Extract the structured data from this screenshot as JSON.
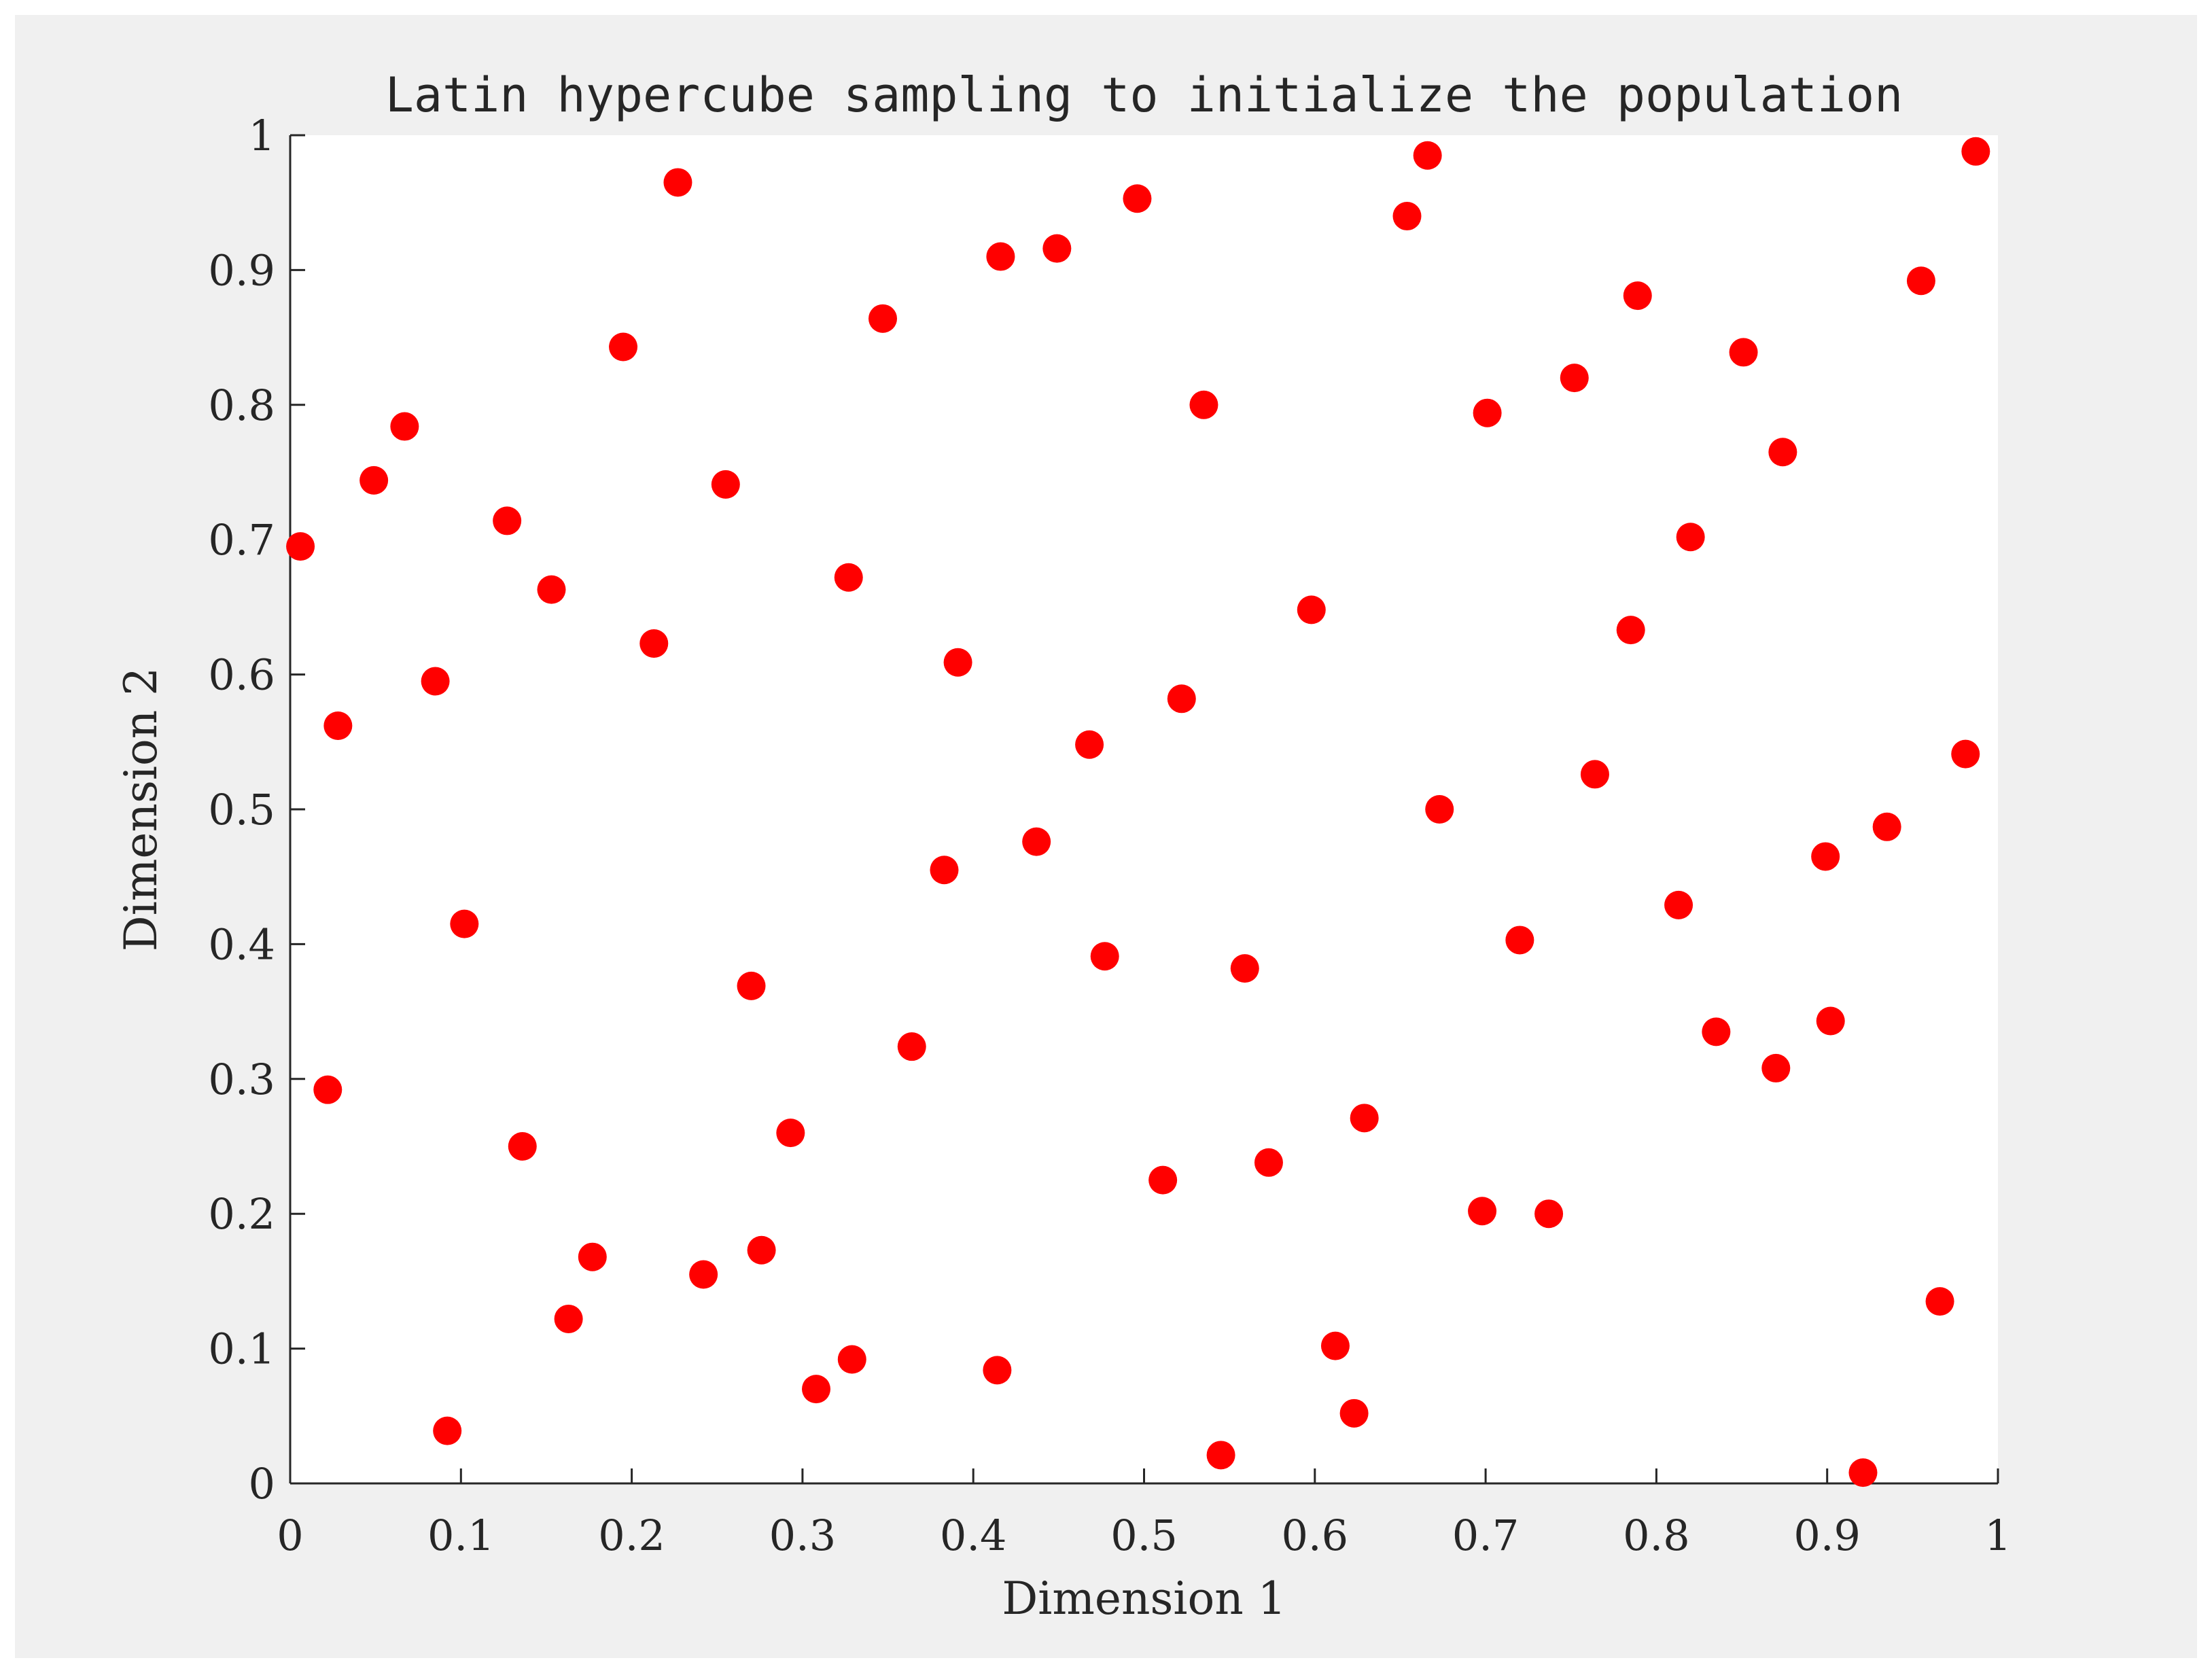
{
  "chart_data": {
    "type": "scatter",
    "title": "Latin hypercube sampling to initialize the population",
    "xlabel": "Dimension 1",
    "ylabel": "Dimension 2",
    "xlim": [
      0,
      1
    ],
    "ylim": [
      0,
      1
    ],
    "xticks": [
      "0",
      "0.1",
      "0.2",
      "0.3",
      "0.4",
      "0.5",
      "0.6",
      "0.7",
      "0.8",
      "0.9",
      "1"
    ],
    "yticks": [
      "0",
      "0.1",
      "0.2",
      "0.3",
      "0.4",
      "0.5",
      "0.6",
      "0.7",
      "0.8",
      "0.9",
      "1"
    ],
    "grid": false,
    "marker_color": "#ff0000",
    "points": [
      [
        0.006,
        0.695
      ],
      [
        0.022,
        0.292
      ],
      [
        0.028,
        0.562
      ],
      [
        0.049,
        0.744
      ],
      [
        0.067,
        0.784
      ],
      [
        0.085,
        0.595
      ],
      [
        0.092,
        0.039
      ],
      [
        0.102,
        0.415
      ],
      [
        0.127,
        0.714
      ],
      [
        0.136,
        0.25
      ],
      [
        0.153,
        0.663
      ],
      [
        0.163,
        0.122
      ],
      [
        0.177,
        0.168
      ],
      [
        0.195,
        0.843
      ],
      [
        0.213,
        0.623
      ],
      [
        0.227,
        0.965
      ],
      [
        0.242,
        0.155
      ],
      [
        0.255,
        0.741
      ],
      [
        0.27,
        0.369
      ],
      [
        0.276,
        0.173
      ],
      [
        0.293,
        0.26
      ],
      [
        0.308,
        0.07
      ],
      [
        0.327,
        0.672
      ],
      [
        0.329,
        0.092
      ],
      [
        0.347,
        0.864
      ],
      [
        0.364,
        0.324
      ],
      [
        0.383,
        0.455
      ],
      [
        0.391,
        0.609
      ],
      [
        0.414,
        0.084
      ],
      [
        0.416,
        0.91
      ],
      [
        0.437,
        0.476
      ],
      [
        0.449,
        0.916
      ],
      [
        0.468,
        0.548
      ],
      [
        0.477,
        0.391
      ],
      [
        0.496,
        0.953
      ],
      [
        0.511,
        0.225
      ],
      [
        0.522,
        0.582
      ],
      [
        0.535,
        0.8
      ],
      [
        0.545,
        0.021
      ],
      [
        0.559,
        0.382
      ],
      [
        0.573,
        0.238
      ],
      [
        0.598,
        0.648
      ],
      [
        0.612,
        0.102
      ],
      [
        0.623,
        0.052
      ],
      [
        0.629,
        0.271
      ],
      [
        0.654,
        0.94
      ],
      [
        0.666,
        0.985
      ],
      [
        0.673,
        0.5
      ],
      [
        0.698,
        0.202
      ],
      [
        0.701,
        0.794
      ],
      [
        0.72,
        0.403
      ],
      [
        0.737,
        0.2
      ],
      [
        0.752,
        0.82
      ],
      [
        0.764,
        0.526
      ],
      [
        0.785,
        0.633
      ],
      [
        0.789,
        0.881
      ],
      [
        0.813,
        0.429
      ],
      [
        0.82,
        0.702
      ],
      [
        0.835,
        0.335
      ],
      [
        0.851,
        0.839
      ],
      [
        0.87,
        0.308
      ],
      [
        0.874,
        0.765
      ],
      [
        0.899,
        0.465
      ],
      [
        0.902,
        0.343
      ],
      [
        0.921,
        0.008
      ],
      [
        0.935,
        0.487
      ],
      [
        0.955,
        0.892
      ],
      [
        0.966,
        0.135
      ],
      [
        0.981,
        0.541
      ],
      [
        0.987,
        0.988
      ]
    ]
  }
}
